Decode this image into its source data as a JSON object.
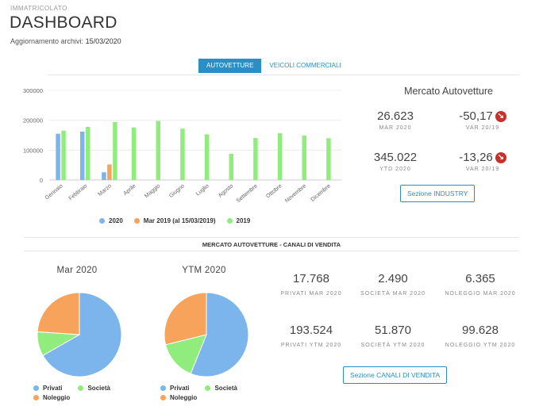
{
  "header": {
    "pretitle": "IMMATRICOLATO",
    "title": "DASHBOARD",
    "updated_label": "Aggiornamento archivi:",
    "updated_value": "15/03/2020"
  },
  "tabs": [
    {
      "label": "AUTOVETTURE",
      "active": true
    },
    {
      "label": "VEICOLI COMMERCIALI",
      "active": false
    }
  ],
  "market": {
    "title": "Mercato Autovetture",
    "metrics": [
      {
        "value": "26.623",
        "label": "MAR 2020"
      },
      {
        "value": "-50,17",
        "label": "VAR 20/19",
        "trend": "down"
      },
      {
        "value": "345.022",
        "label": "YTD 2020"
      },
      {
        "value": "-13,26",
        "label": "VAR 20/19",
        "trend": "down"
      }
    ],
    "button": "Sezione INDUSTRY"
  },
  "chart_data": [
    {
      "type": "bar",
      "categories": [
        "Gennaio",
        "Febbraio",
        "Marzo",
        "Aprile",
        "Maggio",
        "Giugno",
        "Luglio",
        "Agosto",
        "Settembre",
        "Ottobre",
        "Novembre",
        "Dicembre"
      ],
      "series": [
        {
          "name": "2020",
          "color": "#7cb5ec",
          "values": [
            155000,
            162000,
            26000,
            null,
            null,
            null,
            null,
            null,
            null,
            null,
            null,
            null
          ]
        },
        {
          "name": "Mar 2019 (al 15/03/2019)",
          "color": "#f7a35c",
          "values": [
            null,
            null,
            52000,
            null,
            null,
            null,
            null,
            null,
            null,
            null,
            null,
            null
          ]
        },
        {
          "name": "2019",
          "color": "#90ed7d",
          "values": [
            165000,
            178000,
            194000,
            176000,
            198000,
            172000,
            153000,
            88000,
            141000,
            157000,
            149000,
            140000
          ]
        }
      ],
      "yticks": [
        0,
        100000,
        200000,
        300000
      ],
      "ylim": [
        0,
        300000
      ],
      "legend": "bottom"
    },
    {
      "type": "pie",
      "title": "Mar 2020",
      "categories": [
        "Privati",
        "Società",
        "Noleggio"
      ],
      "values": [
        17768,
        2490,
        6365
      ],
      "colors": [
        "#7cb5ec",
        "#90ed7d",
        "#f7a35c"
      ]
    },
    {
      "type": "pie",
      "title": "YTM 2020",
      "categories": [
        "Privati",
        "Società",
        "Noleggio"
      ],
      "values": [
        193524,
        51870,
        99628
      ],
      "colors": [
        "#7cb5ec",
        "#90ed7d",
        "#f7a35c"
      ]
    }
  ],
  "channels": {
    "section_title": "MERCATO AUTOVETTURE - CANALI DI VENDITA",
    "stats": [
      {
        "value": "17.768",
        "label": "PRIVATI MAR 2020"
      },
      {
        "value": "2.490",
        "label": "SOCIETÀ MAR 2020"
      },
      {
        "value": "6.365",
        "label": "NOLEGGIO MAR 2020"
      },
      {
        "value": "193.524",
        "label": "PRIVATI YTM 2020"
      },
      {
        "value": "51.870",
        "label": "SOCIETÀ YTM 2020"
      },
      {
        "value": "99.628",
        "label": "NOLEGGIO YTM 2020"
      }
    ],
    "button": "Sezione CANALI DI VENDITA"
  }
}
